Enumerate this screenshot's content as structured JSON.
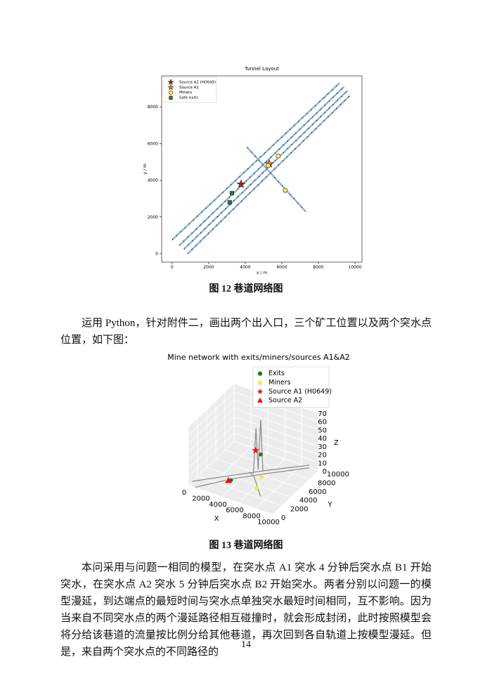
{
  "chart_data": [
    {
      "type": "scatter",
      "title": "Tunnel Layout",
      "xlabel": "x / m",
      "ylabel": "y / m",
      "xlim": [
        -570,
        10380
      ],
      "ylim": [
        -460,
        9690
      ],
      "xticks": [
        0,
        2000,
        4000,
        6000,
        8000,
        10000
      ],
      "yticks": [
        0,
        2000,
        4000,
        6000,
        8000
      ],
      "lines": {
        "color": "#8fb3d3",
        "segments": [
          {
            "x": [
              0,
              9150
            ],
            "y": [
              750,
              9300
            ]
          },
          {
            "x": [
              400,
              9400
            ],
            "y": [
              450,
              9100
            ]
          },
          {
            "x": [
              650,
              9600
            ],
            "y": [
              250,
              8900
            ]
          },
          {
            "x": [
              850,
              9700
            ],
            "y": [
              0,
              8600
            ]
          },
          {
            "x": [
              4100,
              7300
            ],
            "y": [
              5800,
              2300
            ]
          }
        ]
      },
      "series": [
        {
          "name": "Source A2 (H0649)",
          "color": "#b22222",
          "marker": "star",
          "x": [
            3770
          ],
          "y": [
            3790
          ]
        },
        {
          "name": "Source A1",
          "color": "#ff7f0e",
          "marker": "star",
          "x": [
            5310
          ],
          "y": [
            4900
          ]
        },
        {
          "name": "Miners",
          "color": "#f5e94a",
          "marker": "circle",
          "x": [
            5800,
            6190,
            5250
          ],
          "y": [
            5325,
            3450,
            4800
          ]
        },
        {
          "name": "Safe exits",
          "color": "#2e7d32",
          "marker": "square",
          "x": [
            3270,
            3150
          ],
          "y": [
            3300,
            2800
          ]
        }
      ],
      "legend": "upper left"
    },
    {
      "type": "scatter3d",
      "title": "Mine network with exits/miners/sources A1&A2",
      "xlabel": "X",
      "ylabel": "Y",
      "zlabel": "Z",
      "xlim": [
        0,
        10000
      ],
      "ylim": [
        0,
        10000
      ],
      "zlim": [
        0,
        70
      ],
      "xticks": [
        0,
        2000,
        4000,
        6000,
        8000,
        10000
      ],
      "yticks": [
        0,
        2000,
        4000,
        6000,
        8000,
        10000
      ],
      "zticks": [
        0,
        10,
        20,
        30,
        40,
        50,
        60,
        70
      ],
      "lines": {
        "color": "#888888",
        "segments": [
          {
            "x": [
              0,
              3000,
              6000,
              9300
            ],
            "y": [
              800,
              3800,
              6500,
              9300
            ],
            "z": [
              0,
              2,
              5,
              8
            ]
          },
          {
            "x": [
              800,
              3500,
              6500,
              9700
            ],
            "y": [
              0,
              3200,
              6000,
              8600
            ],
            "z": [
              0,
              3,
              6,
              10
            ]
          },
          {
            "x": [
              5000,
              5200,
              5400,
              5600,
              5800
            ],
            "y": [
              5000,
              5200,
              5300,
              5500,
              5600
            ],
            "z": [
              5,
              60,
              10,
              70,
              8
            ]
          },
          {
            "x": [
              4100,
              5500,
              7300
            ],
            "y": [
              5800,
              4300,
              2300
            ],
            "z": [
              0,
              6,
              0
            ]
          }
        ]
      },
      "series": [
        {
          "name": "Exits",
          "color": "#1a7f1a",
          "marker": "circle",
          "x": [
            3270,
            5600
          ],
          "y": [
            3300,
            5500
          ],
          "z": [
            0,
            28
          ]
        },
        {
          "name": "Miners",
          "color": "#f5e94a",
          "marker": "circle",
          "x": [
            3000,
            5800,
            6190
          ],
          "y": [
            3000,
            5325,
            3450
          ],
          "z": [
            0,
            2,
            0
          ]
        },
        {
          "name": "Source A1 (H0649)",
          "color": "#ee1111",
          "marker": "star",
          "x": [
            5100
          ],
          "y": [
            5300
          ],
          "z": [
            32
          ]
        },
        {
          "name": "Source A2",
          "color": "#ee1111",
          "marker": "triangle",
          "x": [
            3100
          ],
          "y": [
            3050
          ],
          "z": [
            0
          ]
        }
      ],
      "legend": "upper right"
    }
  ],
  "document": {
    "captions": [
      "图 12 巷道网络图",
      "图 13 巷道网络图"
    ],
    "paragraphs": [
      "运用 Python，针对附件二，画出两个出入口，三个矿工位置以及两个突水点位置，如下图：",
      "本问采用与问题一相同的模型，在突水点 A1 突水 4 分钟后突水点 B1 开始突水，在突水点 A2 突水 5 分钟后突水点 B2 开始突水。两者分别以问题一的模型漫延，到达端点的最短时间与突水点单独突水最短时间相同，互不影响。因为当来自不同突水点的两个漫延路径相互碰撞时，就会形成封闭，此时按照模型会将分给该巷道的流量按比例分给其他巷道，再次回到各自轨道上按模型漫延。但是，来自两个突水点的不同路径的"
    ],
    "page_number": "14"
  }
}
